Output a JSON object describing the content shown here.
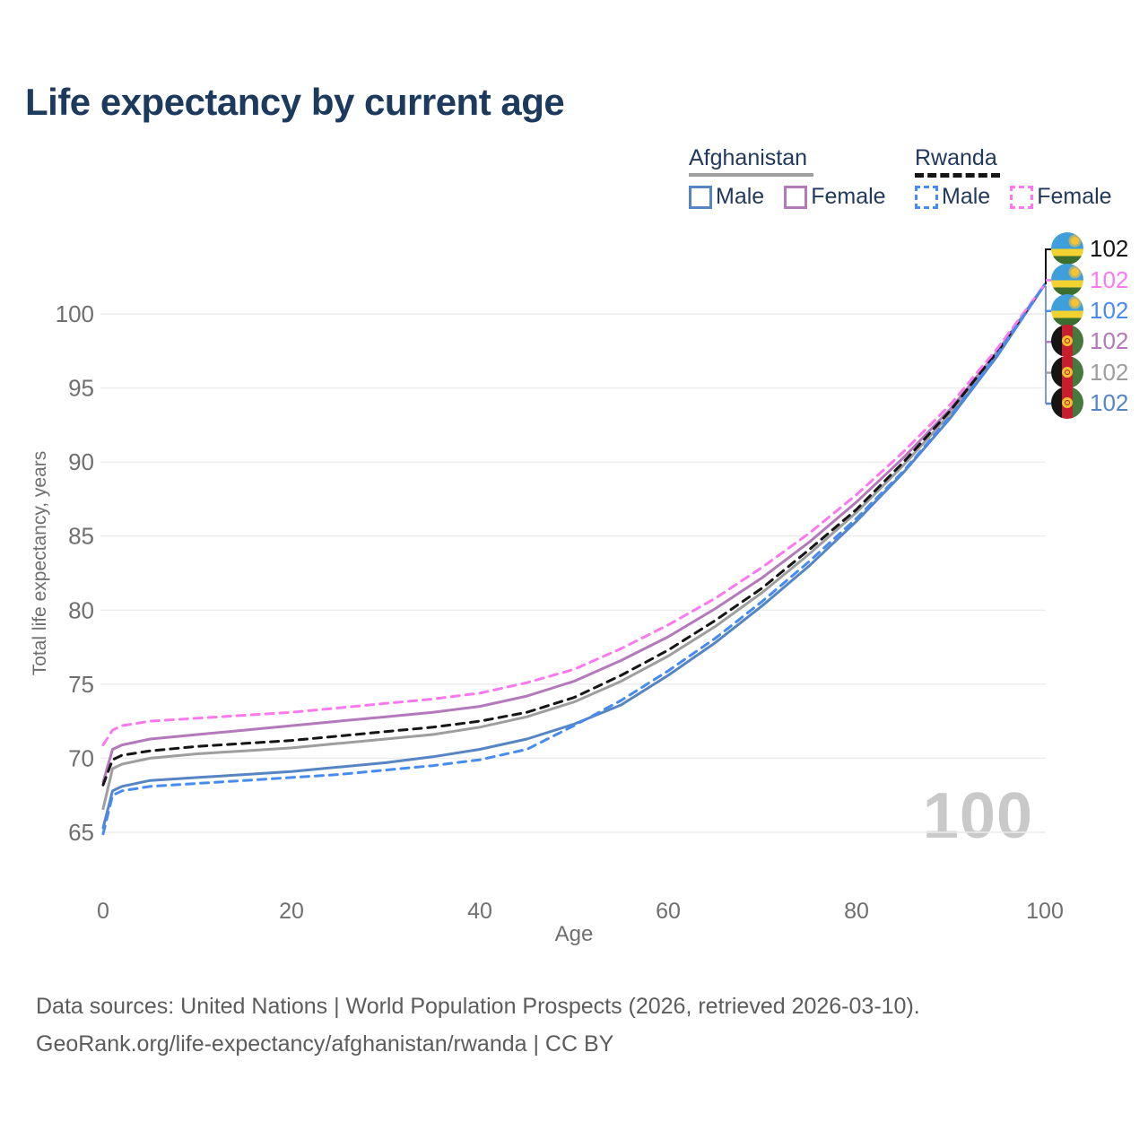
{
  "title": "Life expectancy by current age",
  "legend": {
    "afghanistan": {
      "title": "Afghanistan",
      "male": "Male",
      "female": "Female"
    },
    "rwanda": {
      "title": "Rwanda",
      "male": "Male",
      "female": "Female"
    }
  },
  "watermark": "100",
  "footer": {
    "line1": "Data sources: United Nations | World Population Prospects (2026, retrieved 2026-03-10).",
    "line2": "GeoRank.org/life-expectancy/afghanistan/rwanda | CC BY"
  },
  "chart_data": {
    "type": "line",
    "title": "Life expectancy by current age",
    "xlabel": "Age",
    "ylabel": "Total life expectancy, years",
    "xlim": [
      0,
      100
    ],
    "ylim": [
      64,
      103
    ],
    "xticks": [
      0,
      20,
      40,
      60,
      80,
      100
    ],
    "yticks": [
      65,
      70,
      75,
      80,
      85,
      90,
      95,
      100
    ],
    "grid": "horizontal",
    "grid_color": "#ececec",
    "tick_color": "#6f6f6f",
    "x": [
      0,
      1,
      2,
      5,
      10,
      15,
      20,
      25,
      30,
      35,
      40,
      45,
      50,
      55,
      60,
      65,
      70,
      75,
      80,
      85,
      90,
      95,
      100
    ],
    "series": [
      {
        "name": "Rwanda Both sexes",
        "country": "Rwanda",
        "sex": "Both",
        "color": "#151515",
        "line_style": "dashed",
        "end_label": "102",
        "values": [
          68.2,
          69.9,
          70.2,
          70.5,
          70.8,
          71.0,
          71.2,
          71.5,
          71.8,
          72.1,
          72.5,
          73.1,
          74.1,
          75.6,
          77.3,
          79.3,
          81.5,
          84.1,
          86.8,
          90.0,
          93.5,
          97.5,
          102
        ]
      },
      {
        "name": "Rwanda Female",
        "country": "Rwanda",
        "sex": "Female",
        "color": "#fb78ef",
        "line_style": "dashed",
        "end_label": "102",
        "values": [
          70.9,
          71.9,
          72.2,
          72.5,
          72.7,
          72.9,
          73.1,
          73.4,
          73.7,
          74.0,
          74.4,
          75.1,
          76.0,
          77.4,
          79.0,
          80.8,
          82.9,
          85.2,
          87.8,
          90.7,
          93.9,
          97.7,
          102
        ]
      },
      {
        "name": "Rwanda Male",
        "country": "Rwanda",
        "sex": "Male",
        "color": "#478bf0",
        "line_style": "dashed",
        "end_label": "102",
        "values": [
          64.9,
          67.5,
          67.8,
          68.1,
          68.3,
          68.5,
          68.7,
          68.9,
          69.2,
          69.5,
          69.9,
          70.6,
          72.2,
          73.9,
          75.9,
          78.1,
          80.6,
          83.3,
          86.2,
          89.4,
          93.1,
          97.3,
          102
        ]
      },
      {
        "name": "Afghanistan Female",
        "country": "Afghanistan",
        "sex": "Female",
        "color": "#b379ba",
        "line_style": "solid",
        "end_label": "102",
        "values": [
          68.4,
          70.6,
          70.9,
          71.3,
          71.6,
          71.9,
          72.2,
          72.5,
          72.8,
          73.1,
          73.5,
          74.2,
          75.2,
          76.6,
          78.2,
          80.1,
          82.2,
          84.6,
          87.3,
          90.3,
          93.6,
          97.5,
          102
        ]
      },
      {
        "name": "Afghanistan Both sexes",
        "country": "Afghanistan",
        "sex": "Both",
        "color": "#9e9e9e",
        "line_style": "solid",
        "end_label": "102",
        "values": [
          66.6,
          69.3,
          69.6,
          70.0,
          70.3,
          70.5,
          70.7,
          71.0,
          71.3,
          71.6,
          72.1,
          72.8,
          73.8,
          75.2,
          76.9,
          78.9,
          81.2,
          83.8,
          86.6,
          89.8,
          93.3,
          97.4,
          102
        ]
      },
      {
        "name": "Afghanistan Male",
        "country": "Afghanistan",
        "sex": "Male",
        "color": "#5585c2",
        "line_style": "solid",
        "end_label": "102",
        "values": [
          65.3,
          67.8,
          68.1,
          68.5,
          68.7,
          68.9,
          69.1,
          69.4,
          69.7,
          70.1,
          70.6,
          71.3,
          72.3,
          73.6,
          75.6,
          77.8,
          80.3,
          83.0,
          86.0,
          89.3,
          93.0,
          97.2,
          102
        ]
      }
    ],
    "legend_position": "top-right",
    "end_label_connector_color": "#7d9ad6"
  }
}
